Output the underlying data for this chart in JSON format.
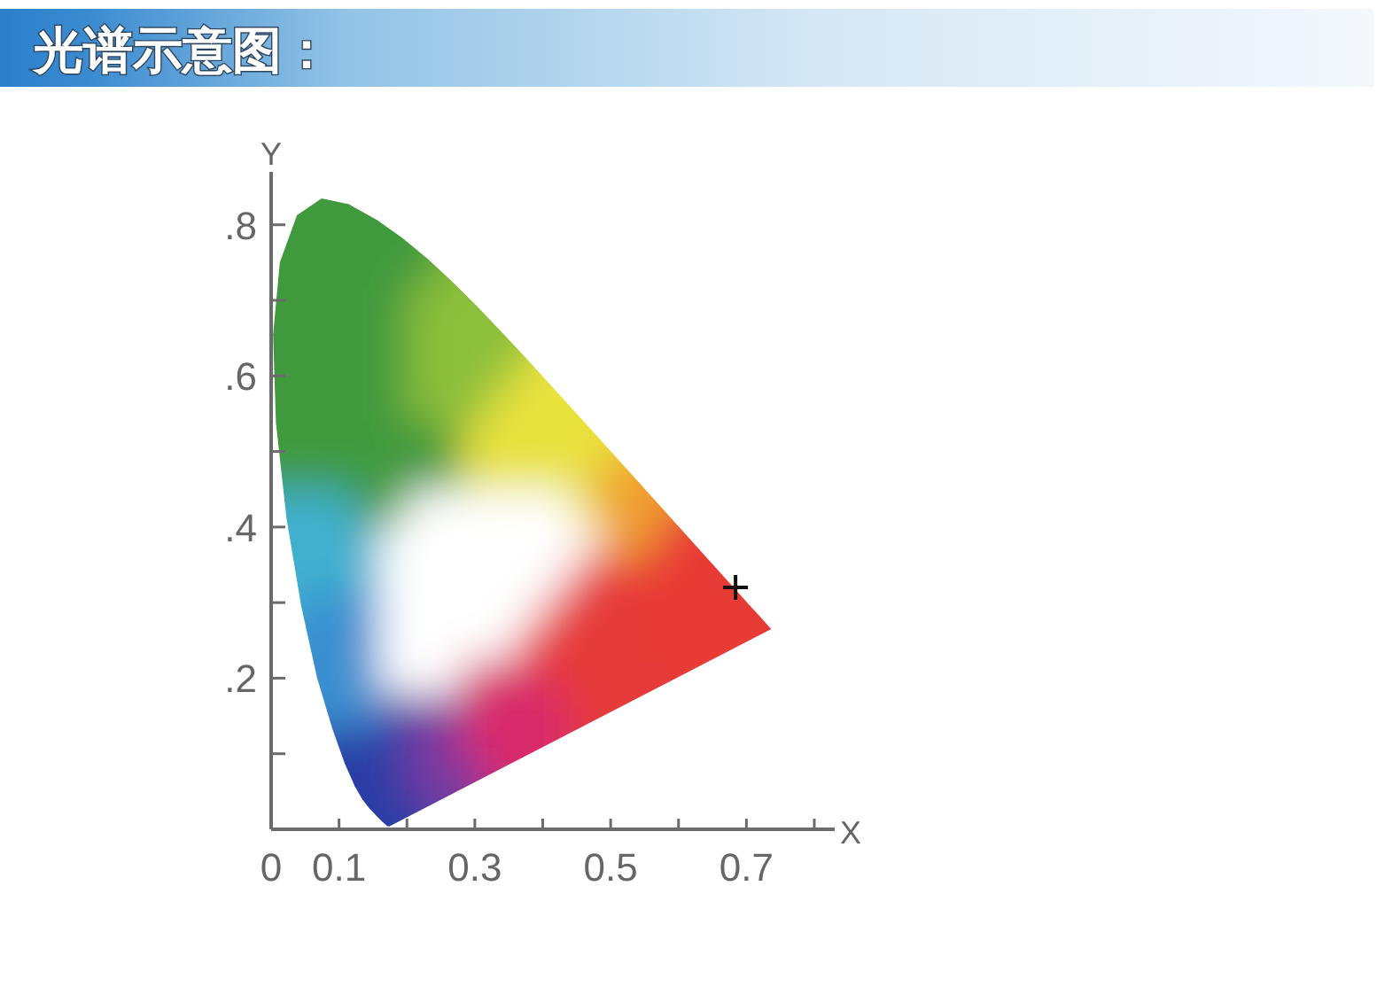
{
  "chart_data": {
    "type": "scatter",
    "title": "光谱示意图：",
    "xlabel": "X",
    "ylabel": "Y",
    "series": [
      {
        "color": "#111111",
        "x": [
          0.684
        ],
        "values": [
          0.32
        ]
      }
    ],
    "marker": "cross",
    "xlim": [
      0,
      0.83
    ],
    "ylim": [
      0,
      0.87
    ],
    "xticks": [
      0,
      0.1,
      {
        "value": 0.2,
        "label": null
      },
      0.3,
      {
        "value": 0.4,
        "label": null
      },
      0.5,
      {
        "value": 0.6,
        "label": null
      },
      0.7,
      {
        "value": 0.8,
        "label": null
      }
    ],
    "yticks": [
      {
        "value": 0.1,
        "label": null
      },
      {
        "value": 0.2,
        "label": ".2"
      },
      {
        "value": 0.3,
        "label": null
      },
      {
        "value": 0.4,
        "label": ".4"
      },
      {
        "value": 0.5,
        "label": null
      },
      {
        "value": 0.6,
        "label": ".6"
      },
      {
        "value": 0.7,
        "label": null
      },
      {
        "value": 0.8,
        "label": ".8"
      }
    ]
  }
}
